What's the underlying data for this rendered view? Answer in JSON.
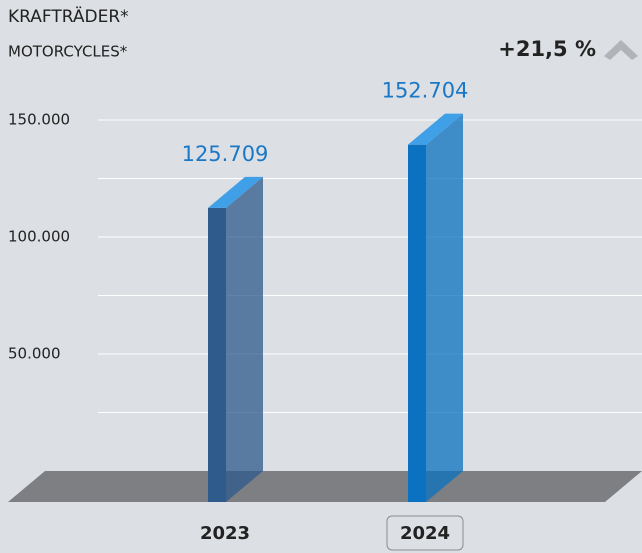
{
  "chart_data": {
    "type": "bar3d",
    "title": "KRAFTRÄDER*",
    "subtitle": "MOTORCYCLES*",
    "change": "+21,5 %",
    "categories": [
      "2023",
      "2024"
    ],
    "values": [
      125709,
      152704
    ],
    "value_labels": [
      "125.709",
      "152.704"
    ],
    "colors": [
      "#2e5a8c",
      "#0a72c0"
    ],
    "ylim": [
      0,
      150000
    ],
    "yticks": [
      {
        "value": 50000,
        "label": "50.000"
      },
      {
        "value": 100000,
        "label": "100.000"
      },
      {
        "value": 150000,
        "label": "150.000"
      }
    ],
    "minor_grid": [
      25000,
      75000,
      125000
    ],
    "grid": true
  }
}
